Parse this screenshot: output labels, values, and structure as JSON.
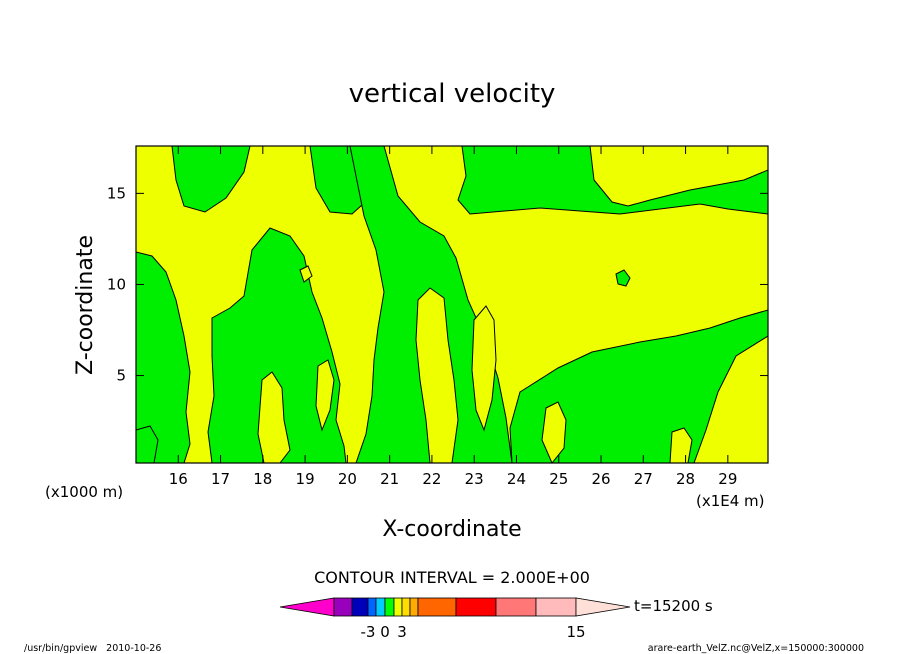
{
  "chart_data": {
    "type": "heatmap",
    "title": "vertical velocity",
    "xlabel": "X-coordinate",
    "ylabel": "Z-coordinate",
    "x_ticks": [
      "16",
      "17",
      "18",
      "19",
      "20",
      "21",
      "22",
      "23",
      "24",
      "25",
      "26",
      "27",
      "28",
      "29"
    ],
    "x_tick_values": [
      16,
      17,
      18,
      19,
      20,
      21,
      22,
      23,
      24,
      25,
      26,
      27,
      28,
      29
    ],
    "xlim": [
      15.0,
      29.95
    ],
    "x_unit": "(x1E4 m)",
    "y_ticks": [
      "5",
      "10",
      "15"
    ],
    "y_tick_values": [
      5,
      10,
      15
    ],
    "ylim": [
      0.2,
      17.6
    ],
    "y_unit": "(x1000 m)",
    "contour_interval_text": "CONTOUR INTERVAL = 2.000E+00",
    "colorbar": {
      "tick_labels": [
        {
          "text": "-3",
          "value": -3
        },
        {
          "text": "0",
          "value": 0
        },
        {
          "text": "3",
          "value": 3
        },
        {
          "text": "15",
          "value": 15
        }
      ],
      "levels": [
        -9,
        -7,
        -5,
        -3,
        -1,
        0,
        1,
        3,
        5,
        7,
        9,
        11,
        13,
        15,
        17
      ],
      "colors": [
        "#ff00cc",
        "#9900bb",
        "#0000bb",
        "#0066ff",
        "#00ccff",
        "#00ff00",
        "#eeff00",
        "#ffdd00",
        "#ffaa00",
        "#ff6600",
        "#ff0000",
        "#ff7777",
        "#ffbbbb",
        "#ffe0d8"
      ]
    },
    "field_colors": {
      "positive": "#eeff00",
      "negative": "#00ee00",
      "outline": "#000000"
    },
    "time_label": "t=15200 s"
  },
  "footer": {
    "left": "/usr/bin/gpview   2010-10-26",
    "right": "arare-earth_VelZ.nc@VelZ,x=150000:300000"
  }
}
